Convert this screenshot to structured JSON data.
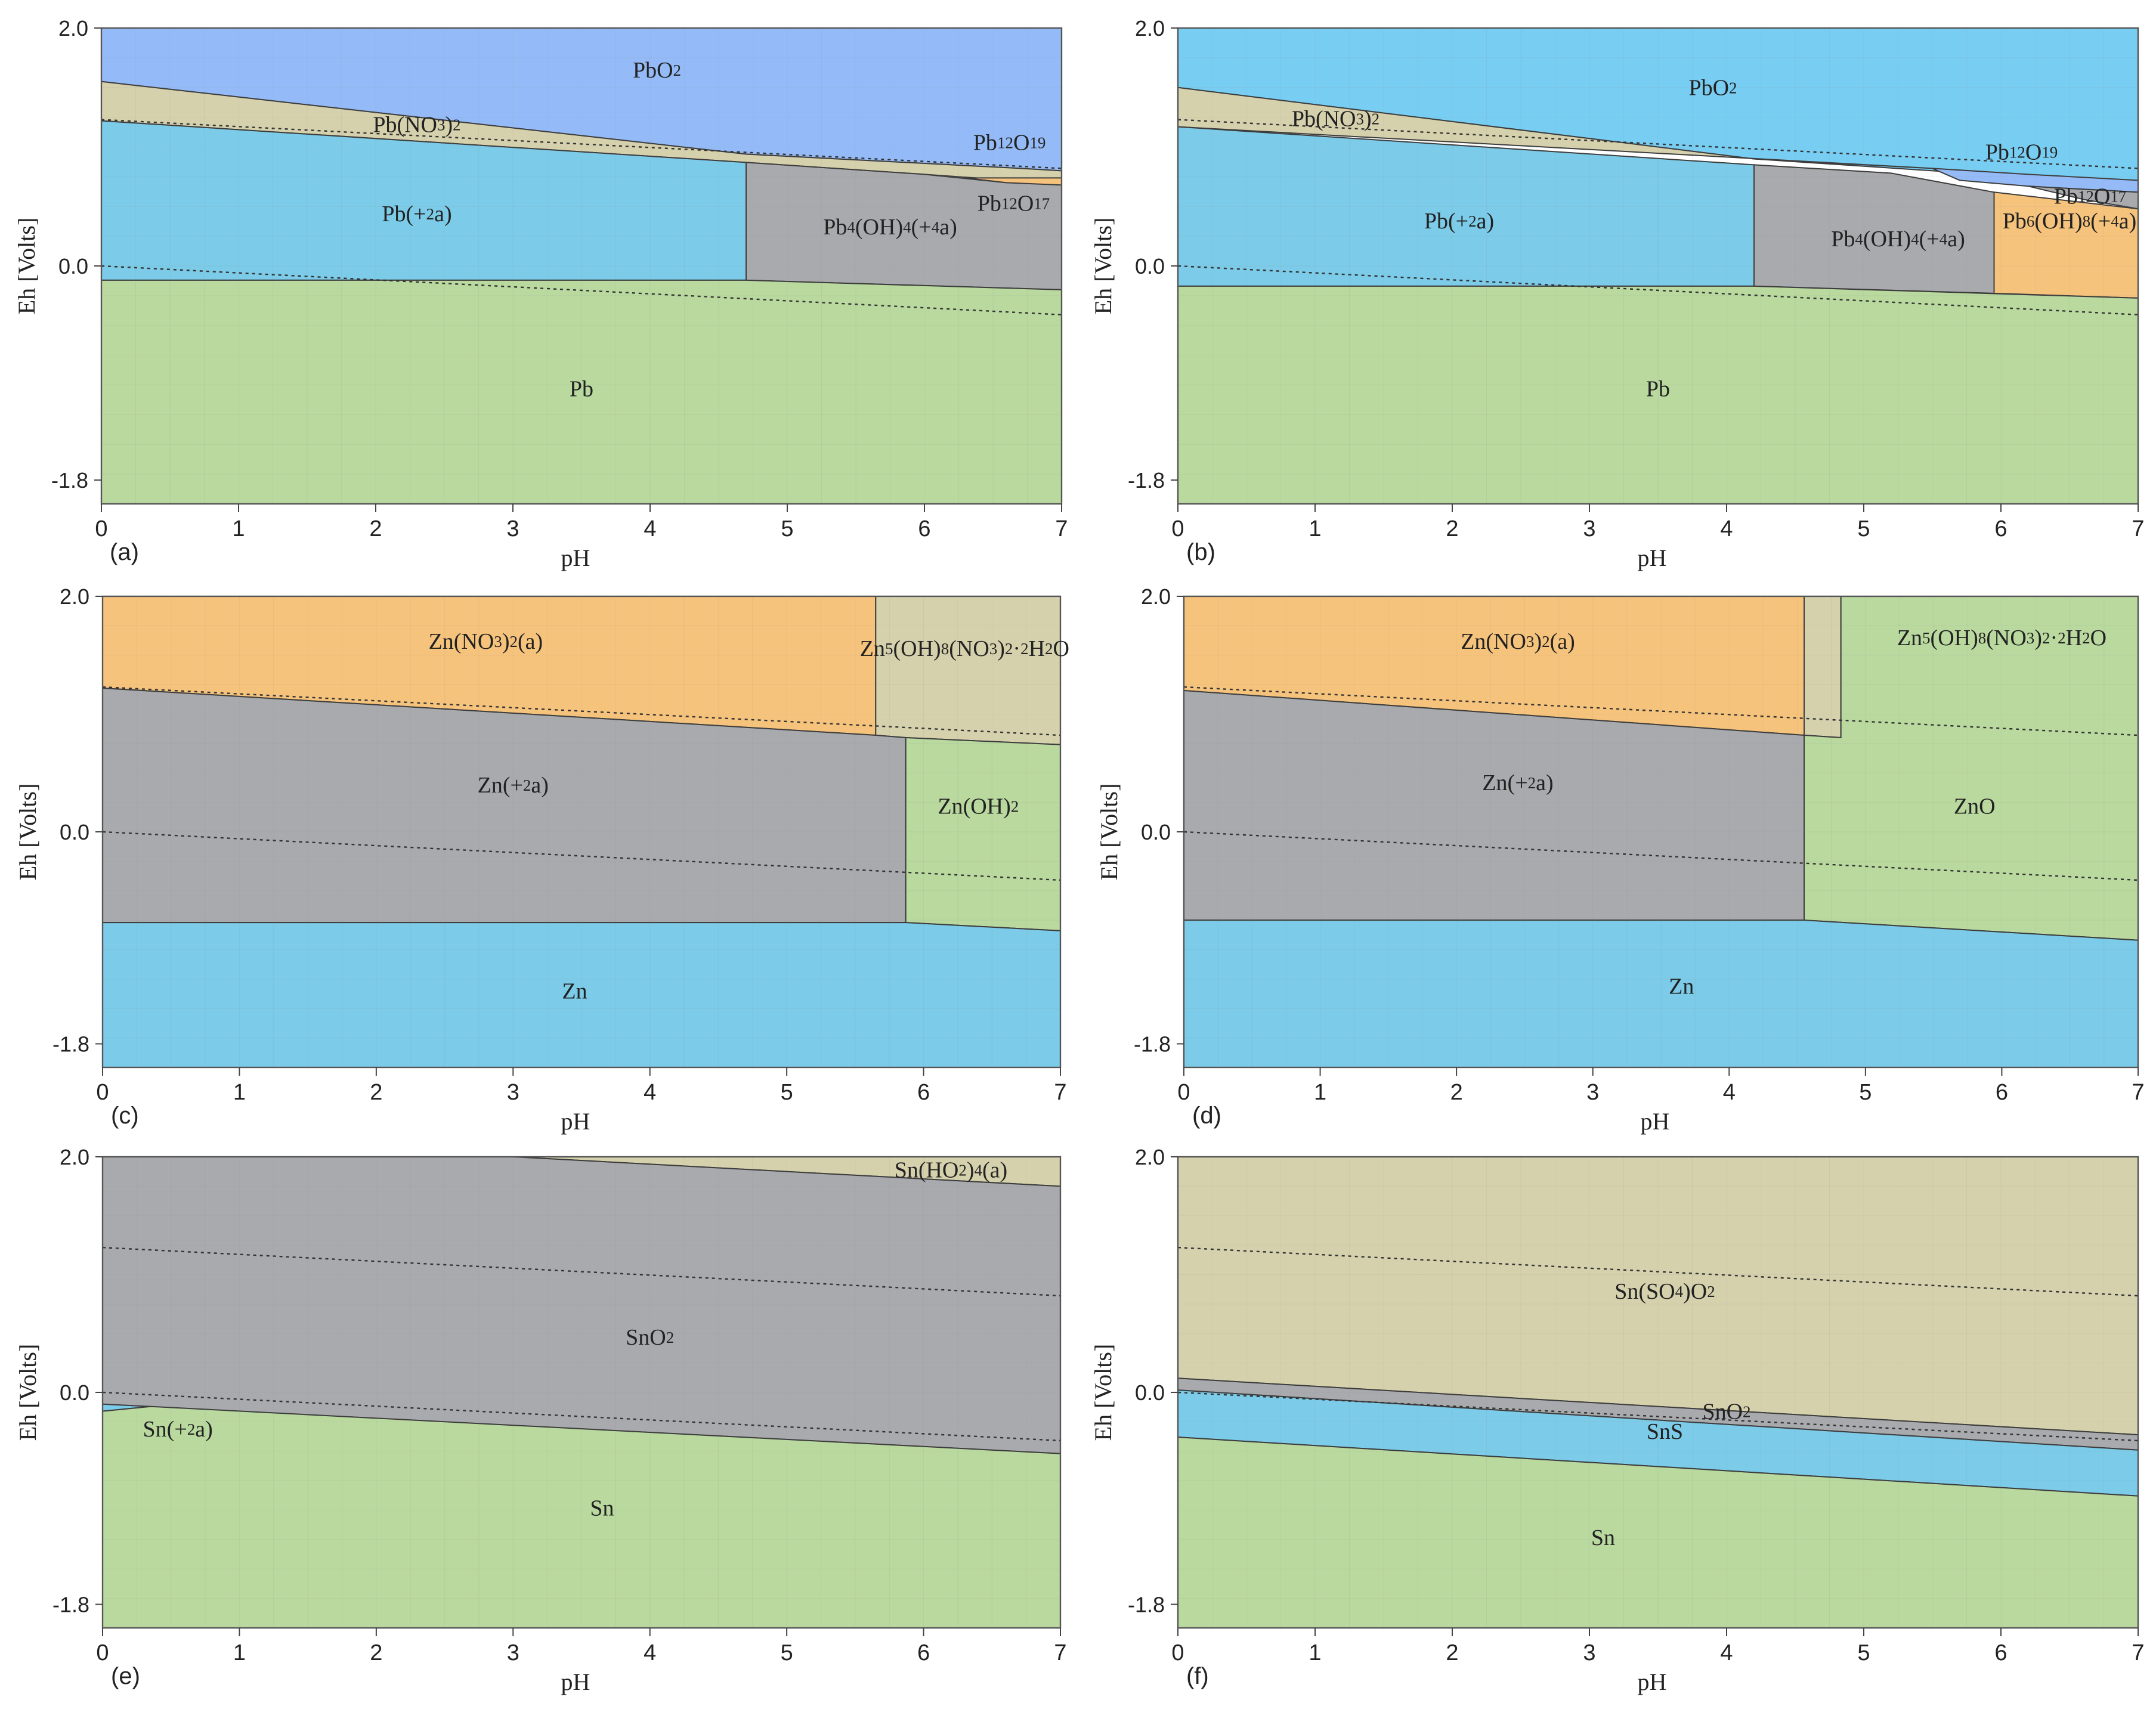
{
  "figure": {
    "x_tick_labels": [
      "0",
      "1",
      "2",
      "3",
      "4",
      "5",
      "6",
      "7"
    ],
    "y_tick_labels": [
      "2.0",
      "0.0",
      "-1.8"
    ],
    "xlabel": "pH",
    "ylabel": "Eh [Volts]"
  },
  "chart_data": [
    {
      "type": "area",
      "panel_label": "(a)",
      "xlabel": "pH",
      "ylabel": "Eh [Volts]",
      "xlim": [
        0,
        7
      ],
      "ylim": [
        -2.0,
        2.0
      ],
      "yticks": [
        2.0,
        0.0,
        -1.8
      ],
      "water_stability_lines": [
        [
          [
            0,
            1.23
          ],
          [
            7,
            0.82
          ]
        ],
        [
          [
            0,
            0.0
          ],
          [
            7,
            -0.41
          ]
        ]
      ],
      "regions": [
        {
          "name": "PbO2",
          "color": "#94bbf7",
          "label_at": [
            4.05,
            1.63
          ],
          "polygon": [
            [
              0,
              2.0
            ],
            [
              7,
              2.0
            ],
            [
              7,
              0.8
            ],
            [
              6.7,
              0.82
            ],
            [
              4.7,
              0.94
            ],
            [
              0,
              1.55
            ]
          ]
        },
        {
          "name": "Pb(NO3)2",
          "color": "#d6d1ad",
          "label_at": [
            2.3,
            1.17
          ],
          "polygon": [
            [
              0,
              1.55
            ],
            [
              4.7,
              0.94
            ],
            [
              6.7,
              0.82
            ],
            [
              7,
              0.8
            ],
            [
              7,
              0.69
            ],
            [
              6.0,
              0.77
            ],
            [
              4.7,
              0.87
            ],
            [
              0,
              1.22
            ]
          ]
        },
        {
          "name": "Pb(+2a)",
          "color": "#7ccbe8",
          "label_at": [
            2.3,
            0.42
          ],
          "polygon": [
            [
              0,
              1.22
            ],
            [
              4.7,
              0.87
            ],
            [
              4.7,
              -0.12
            ],
            [
              0,
              -0.12
            ]
          ]
        },
        {
          "name": "Pb4(OH)4(+4a)",
          "color": "#a9aaad",
          "label_at": [
            5.75,
            0.31
          ],
          "polygon": [
            [
              4.7,
              0.87
            ],
            [
              6.0,
              0.77
            ],
            [
              6.6,
              0.7
            ],
            [
              7,
              0.69
            ],
            [
              7,
              -0.2
            ],
            [
              4.7,
              -0.12
            ]
          ]
        },
        {
          "name": "Pb12O17",
          "color": "#f6c37c",
          "label_at": [
            6.65,
            0.51
          ],
          "polygon": [
            [
              6.3,
              0.74
            ],
            [
              7,
              0.74
            ],
            [
              7,
              0.68
            ],
            [
              6.6,
              0.7
            ]
          ]
        },
        {
          "name": "Pb12O19",
          "label_at": [
            6.62,
            1.02
          ],
          "polygon": []
        },
        {
          "name": "Pb",
          "color": "#b9d99f",
          "label_at": [
            3.5,
            -1.05
          ],
          "polygon": [
            [
              0,
              -0.12
            ],
            [
              4.7,
              -0.12
            ],
            [
              7,
              -0.2
            ],
            [
              7,
              -2.0
            ],
            [
              0,
              -2.0
            ]
          ]
        }
      ]
    },
    {
      "type": "area",
      "panel_label": "(b)",
      "xlabel": "pH",
      "ylabel": "Eh [Volts]",
      "xlim": [
        0,
        7
      ],
      "ylim": [
        -2.0,
        2.0
      ],
      "yticks": [
        2.0,
        0.0,
        -1.8
      ],
      "water_stability_lines": [
        [
          [
            0,
            1.23
          ],
          [
            7,
            0.82
          ]
        ],
        [
          [
            0,
            0.0
          ],
          [
            7,
            -0.41
          ]
        ]
      ],
      "regions": [
        {
          "name": "PbO2",
          "color": "#78cdf2",
          "label_at": [
            3.9,
            1.48
          ],
          "polygon": [
            [
              0,
              2.0
            ],
            [
              7,
              2.0
            ],
            [
              7,
              0.7
            ],
            [
              6.6,
              0.72
            ],
            [
              5.5,
              0.8
            ],
            [
              4.2,
              0.9
            ],
            [
              0,
              1.5
            ]
          ]
        },
        {
          "name": "Pb(NO3)2",
          "color": "#d6d1ad",
          "label_at": [
            1.15,
            1.22
          ],
          "polygon": [
            [
              0,
              1.5
            ],
            [
              4.2,
              0.9
            ],
            [
              5.5,
              0.82
            ],
            [
              0,
              1.17
            ]
          ]
        },
        {
          "name": "Pb12O19",
          "color": "#94bbf7",
          "label_at": [
            6.15,
            0.94
          ],
          "polygon": [
            [
              5.5,
              0.82
            ],
            [
              6.2,
              0.77
            ],
            [
              7,
              0.72
            ],
            [
              7,
              0.62
            ],
            [
              6.2,
              0.67
            ],
            [
              5.7,
              0.72
            ]
          ]
        },
        {
          "name": "Pb12O17",
          "color": "#a9aaad",
          "label_at": [
            6.65,
            0.57
          ],
          "polygon": [
            [
              6.2,
              0.67
            ],
            [
              7,
              0.62
            ],
            [
              7,
              0.48
            ],
            [
              6.6,
              0.56
            ]
          ]
        },
        {
          "name": "Pb(+2a)",
          "color": "#7ccbe8",
          "label_at": [
            2.05,
            0.36
          ],
          "polygon": [
            [
              0,
              1.17
            ],
            [
              4.2,
              0.85
            ],
            [
              4.2,
              -0.17
            ],
            [
              0,
              -0.17
            ]
          ]
        },
        {
          "name": "Pb4(OH)4(+4a)",
          "color": "#a9aaad",
          "label_at": [
            5.25,
            0.21
          ],
          "polygon": [
            [
              4.2,
              0.85
            ],
            [
              5.2,
              0.78
            ],
            [
              5.95,
              0.62
            ],
            [
              5.95,
              -0.23
            ],
            [
              4.2,
              -0.17
            ]
          ]
        },
        {
          "name": "Pb6(OH)8(+4a)",
          "color": "#f6c37c",
          "label_at": [
            6.5,
            0.36
          ],
          "polygon": [
            [
              5.95,
              0.62
            ],
            [
              7,
              0.48
            ],
            [
              7,
              -0.27
            ],
            [
              5.95,
              -0.23
            ]
          ]
        },
        {
          "name": "Pb",
          "color": "#b9d99f",
          "label_at": [
            3.5,
            -1.05
          ],
          "polygon": [
            [
              0,
              -0.17
            ],
            [
              4.2,
              -0.17
            ],
            [
              7,
              -0.27
            ],
            [
              7,
              -2.0
            ],
            [
              0,
              -2.0
            ]
          ]
        }
      ]
    },
    {
      "type": "area",
      "panel_label": "(c)",
      "xlabel": "pH",
      "ylabel": "Eh [Volts]",
      "xlim": [
        0,
        7
      ],
      "ylim": [
        -2.0,
        2.0
      ],
      "yticks": [
        2.0,
        0.0,
        -1.8
      ],
      "water_stability_lines": [
        [
          [
            0,
            1.23
          ],
          [
            7,
            0.82
          ]
        ],
        [
          [
            0,
            0.0
          ],
          [
            7,
            -0.41
          ]
        ]
      ],
      "regions": [
        {
          "name": "Zn(NO3)2(a)",
          "color": "#f6c37c",
          "label_at": [
            2.8,
            1.6
          ],
          "polygon": [
            [
              0,
              2.0
            ],
            [
              5.65,
              2.0
            ],
            [
              5.65,
              0.82
            ],
            [
              0,
              1.22
            ]
          ]
        },
        {
          "name": "Zn5(OH)8(NO3)2·2H2O",
          "color": "#d6d1ad",
          "label_at": [
            6.3,
            1.54
          ],
          "polygon": [
            [
              5.65,
              2.0
            ],
            [
              7,
              2.0
            ],
            [
              7,
              0.74
            ],
            [
              5.87,
              0.8
            ],
            [
              5.65,
              0.82
            ]
          ]
        },
        {
          "name": "Zn(+2a)",
          "color": "#a9aaad",
          "label_at": [
            3.0,
            0.38
          ],
          "polygon": [
            [
              0,
              1.22
            ],
            [
              5.65,
              0.82
            ],
            [
              5.87,
              0.8
            ],
            [
              5.87,
              -0.77
            ],
            [
              0,
              -0.77
            ]
          ]
        },
        {
          "name": "Zn(OH)2",
          "color": "#b9d99f",
          "label_at": [
            6.4,
            0.2
          ],
          "polygon": [
            [
              5.87,
              0.8
            ],
            [
              7,
              0.74
            ],
            [
              7,
              -0.84
            ],
            [
              5.87,
              -0.77
            ]
          ]
        },
        {
          "name": "Zn",
          "color": "#7ccbe8",
          "label_at": [
            3.45,
            -1.37
          ],
          "polygon": [
            [
              0,
              -0.77
            ],
            [
              5.87,
              -0.77
            ],
            [
              7,
              -0.84
            ],
            [
              7,
              -2.0
            ],
            [
              0,
              -2.0
            ]
          ]
        }
      ]
    },
    {
      "type": "area",
      "panel_label": "(d)",
      "xlabel": "pH",
      "ylabel": "Eh [Volts]",
      "xlim": [
        0,
        7
      ],
      "ylim": [
        -2.0,
        2.0
      ],
      "yticks": [
        2.0,
        0.0,
        -1.8
      ],
      "water_stability_lines": [
        [
          [
            0,
            1.23
          ],
          [
            7,
            0.82
          ]
        ],
        [
          [
            0,
            0.0
          ],
          [
            7,
            -0.41
          ]
        ]
      ],
      "regions": [
        {
          "name": "Zn(NO3)2(a)",
          "color": "#f6c37c",
          "label_at": [
            2.45,
            1.6
          ],
          "polygon": [
            [
              0,
              2.0
            ],
            [
              4.55,
              2.0
            ],
            [
              4.55,
              0.82
            ],
            [
              0,
              1.2
            ]
          ]
        },
        {
          "name": "Zn5(OH)8(NO3)2·2H2O",
          "color": "#d6d1ad",
          "label_at": [
            6.0,
            1.63
          ],
          "polygon": [
            [
              4.55,
              2.0
            ],
            [
              4.82,
              2.0
            ],
            [
              4.82,
              0.8
            ],
            [
              4.55,
              0.82
            ]
          ]
        },
        {
          "name": "Zn(+2a)",
          "color": "#a9aaad",
          "label_at": [
            2.45,
            0.4
          ],
          "polygon": [
            [
              0,
              1.2
            ],
            [
              4.55,
              0.82
            ],
            [
              4.55,
              -0.75
            ],
            [
              0,
              -0.75
            ]
          ]
        },
        {
          "name": "ZnO",
          "color": "#b9d99f",
          "label_at": [
            5.8,
            0.2
          ],
          "polygon": [
            [
              4.82,
              2.0
            ],
            [
              7,
              2.0
            ],
            [
              7,
              -0.92
            ],
            [
              4.55,
              -0.75
            ],
            [
              4.55,
              0.82
            ],
            [
              4.82,
              0.8
            ]
          ]
        },
        {
          "name": "Zn",
          "color": "#7ccbe8",
          "label_at": [
            3.65,
            -1.33
          ],
          "polygon": [
            [
              0,
              -0.75
            ],
            [
              4.55,
              -0.75
            ],
            [
              7,
              -0.92
            ],
            [
              7,
              -2.0
            ],
            [
              0,
              -2.0
            ]
          ]
        }
      ]
    },
    {
      "type": "area",
      "panel_label": "(e)",
      "xlabel": "pH",
      "ylabel": "Eh [Volts]",
      "xlim": [
        0,
        7
      ],
      "ylim": [
        -2.0,
        2.0
      ],
      "yticks": [
        2.0,
        0.0,
        -1.8
      ],
      "water_stability_lines": [
        [
          [
            0,
            1.23
          ],
          [
            7,
            0.82
          ]
        ],
        [
          [
            0,
            0.0
          ],
          [
            7,
            -0.41
          ]
        ]
      ],
      "regions": [
        {
          "name": "Sn(HO2)4(a)",
          "color": "#d6d1ad",
          "label_at": [
            6.2,
            1.87
          ],
          "polygon": [
            [
              3.0,
              2.0
            ],
            [
              7,
              2.0
            ],
            [
              7,
              1.75
            ]
          ]
        },
        {
          "name": "SnO2",
          "color": "#a9aaad",
          "label_at": [
            4.0,
            0.45
          ],
          "polygon": [
            [
              0,
              2.0
            ],
            [
              3.0,
              2.0
            ],
            [
              7,
              1.75
            ],
            [
              7,
              -0.52
            ],
            [
              0,
              -0.1
            ]
          ]
        },
        {
          "name": "Sn(+2a)",
          "color": "#7ccbe8",
          "label_at": [
            0.55,
            -0.33
          ],
          "polygon": [
            [
              0,
              -0.1
            ],
            [
              0.35,
              -0.12
            ],
            [
              0,
              -0.16
            ]
          ]
        },
        {
          "name": "Sn",
          "color": "#b9d99f",
          "label_at": [
            3.65,
            -1.0
          ],
          "polygon": [
            [
              0,
              -0.16
            ],
            [
              0.35,
              -0.12
            ],
            [
              7,
              -0.52
            ],
            [
              7,
              -2.0
            ],
            [
              0,
              -2.0
            ]
          ]
        }
      ]
    },
    {
      "type": "area",
      "panel_label": "(f)",
      "xlabel": "pH",
      "ylabel": "Eh [Volts]",
      "xlim": [
        0,
        7
      ],
      "ylim": [
        -2.0,
        2.0
      ],
      "yticks": [
        2.0,
        0.0,
        -1.8
      ],
      "water_stability_lines": [
        [
          [
            0,
            1.23
          ],
          [
            7,
            0.82
          ]
        ],
        [
          [
            0,
            0.0
          ],
          [
            7,
            -0.41
          ]
        ]
      ],
      "regions": [
        {
          "name": "Sn(SO4)O2",
          "color": "#d6d1ad",
          "label_at": [
            3.55,
            0.84
          ],
          "polygon": [
            [
              0,
              2.0
            ],
            [
              7,
              2.0
            ],
            [
              7,
              -0.36
            ],
            [
              0,
              0.12
            ]
          ]
        },
        {
          "name": "SnO2",
          "color": "#a9aaad",
          "label_at": [
            4.0,
            -0.18
          ],
          "polygon": [
            [
              0,
              0.12
            ],
            [
              7,
              -0.36
            ],
            [
              7,
              -0.49
            ],
            [
              0,
              0.02
            ]
          ]
        },
        {
          "name": "SnS",
          "color": "#7ccbe8",
          "label_at": [
            3.55,
            -0.35
          ],
          "polygon": [
            [
              0,
              0.02
            ],
            [
              7,
              -0.49
            ],
            [
              7,
              -0.88
            ],
            [
              0,
              -0.38
            ]
          ]
        },
        {
          "name": "Sn",
          "color": "#b9d99f",
          "label_at": [
            3.1,
            -1.25
          ],
          "polygon": [
            [
              0,
              -0.38
            ],
            [
              7,
              -0.88
            ],
            [
              7,
              -2.0
            ],
            [
              0,
              -2.0
            ]
          ]
        }
      ]
    }
  ]
}
